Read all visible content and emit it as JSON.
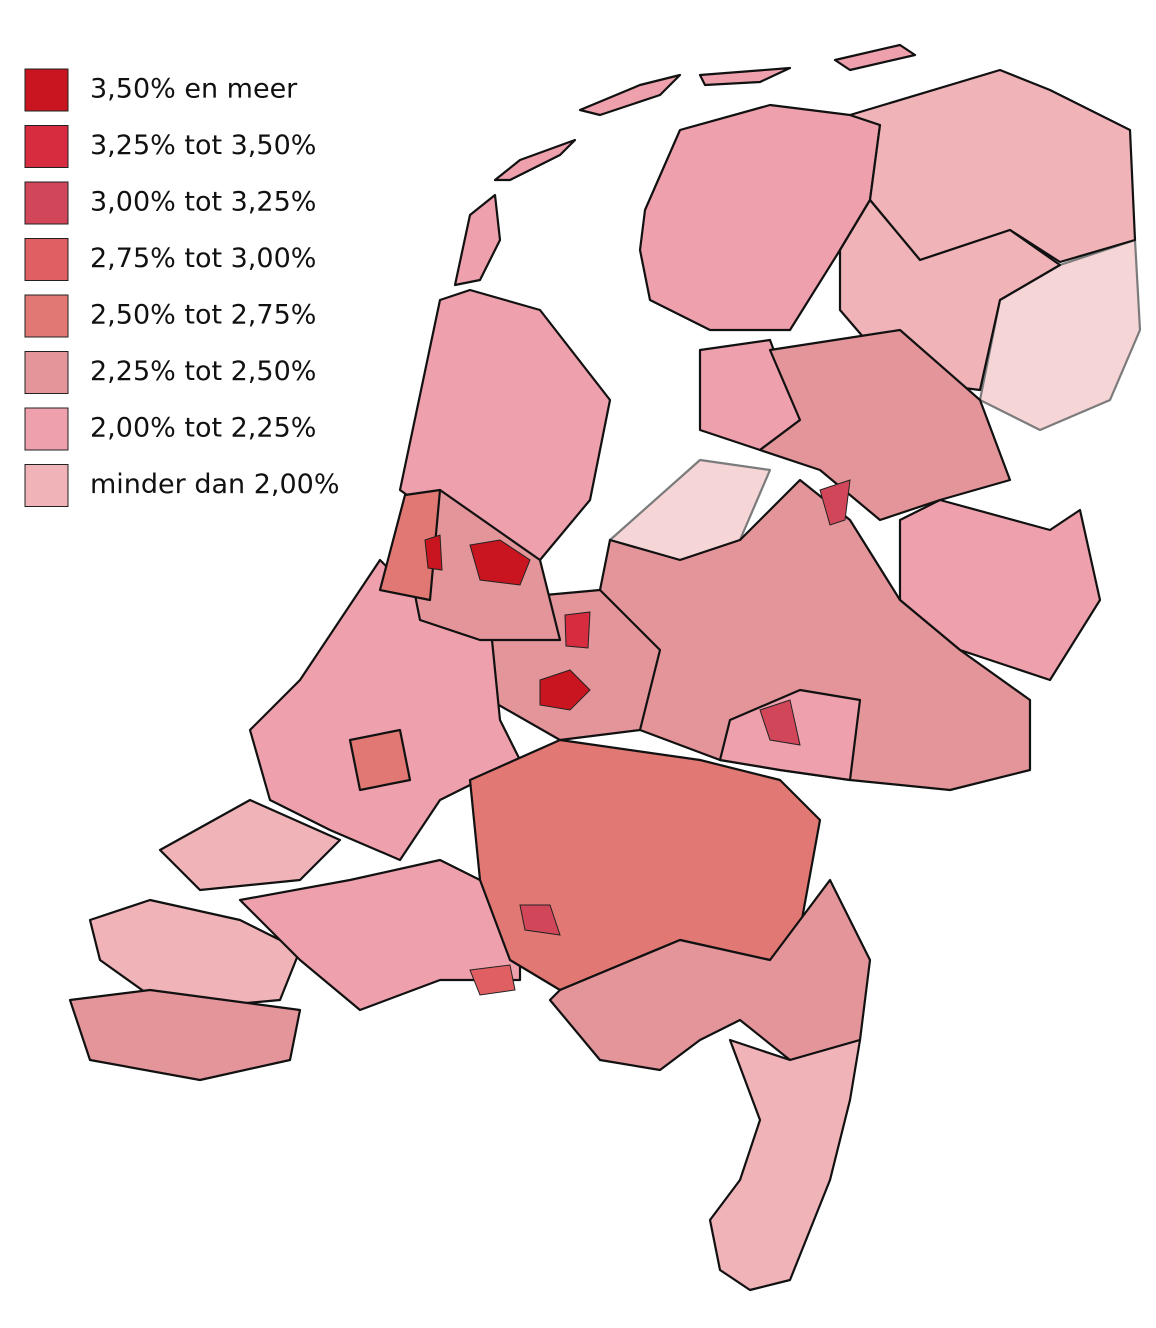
{
  "legend": [
    {
      "label": "3,50% en meer",
      "color": "#c8151f"
    },
    {
      "label": "3,25% tot 3,50%",
      "color": "#d72c40"
    },
    {
      "label": "3,00% tot 3,25%",
      "color": "#d2465a"
    },
    {
      "label": "2,75% tot 3,00%",
      "color": "#e05f62"
    },
    {
      "label": "2,50% tot 2,75%",
      "color": "#e17874"
    },
    {
      "label": "2,25% tot 2,50%",
      "color": "#e3959a"
    },
    {
      "label": "2,00% tot 2,25%",
      "color": "#eea1ad"
    },
    {
      "label": "minder dan 2,00%",
      "color": "#efb3b8"
    }
  ]
}
